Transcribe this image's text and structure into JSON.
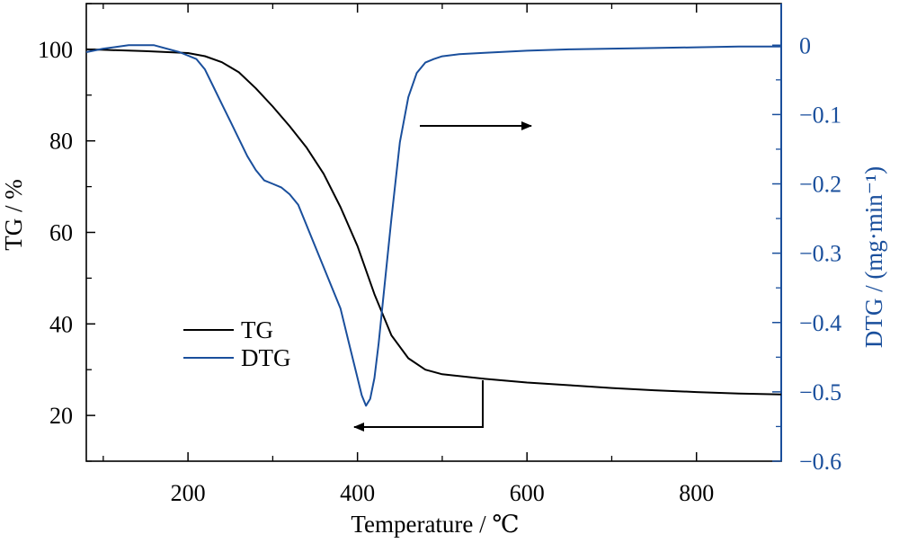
{
  "chart_data": {
    "type": "line",
    "title": "",
    "xlabel": "Temperature / ℃",
    "ylabel_left": "TG / %",
    "ylabel_right": "DTG / (mg·min⁻¹)",
    "xlim": [
      80,
      900
    ],
    "ylim_left": [
      10,
      110
    ],
    "ylim_right": [
      -0.6,
      0.06
    ],
    "x_ticks": [
      200,
      400,
      600,
      800
    ],
    "x_tick_labels": [
      "200",
      "400",
      "600",
      "800"
    ],
    "y_left_ticks": [
      20,
      40,
      60,
      80,
      100
    ],
    "y_left_tick_labels": [
      "20",
      "40",
      "60",
      "80",
      "100"
    ],
    "y_right_ticks": [
      0,
      -0.1,
      -0.2,
      -0.3,
      -0.4,
      -0.5,
      -0.6
    ],
    "y_right_tick_labels": [
      "0",
      "−0.1",
      "−0.2",
      "−0.3",
      "−0.4",
      "−0.5",
      "−0.6"
    ],
    "legend_position": "bottom-left",
    "grid": false,
    "series": [
      {
        "name": "TG",
        "axis": "left",
        "color": "#000000",
        "x": [
          80,
          100,
          150,
          200,
          220,
          240,
          260,
          280,
          300,
          320,
          340,
          360,
          380,
          400,
          420,
          440,
          460,
          480,
          500,
          550,
          600,
          650,
          700,
          750,
          800,
          850,
          900
        ],
        "y": [
          100,
          99.9,
          99.6,
          99.2,
          98.5,
          97.2,
          95.0,
          91.5,
          87.5,
          83.2,
          78.5,
          72.8,
          65.5,
          57.0,
          46.5,
          37.5,
          32.5,
          30.0,
          29.0,
          28.0,
          27.2,
          26.6,
          26.0,
          25.5,
          25.1,
          24.8,
          24.6
        ]
      },
      {
        "name": "DTG",
        "axis": "right",
        "color": "#1a4f9c",
        "x": [
          80,
          100,
          130,
          160,
          190,
          210,
          220,
          230,
          240,
          250,
          260,
          270,
          280,
          290,
          300,
          310,
          320,
          330,
          340,
          350,
          360,
          370,
          380,
          390,
          400,
          405,
          410,
          415,
          420,
          425,
          430,
          440,
          450,
          460,
          470,
          480,
          490,
          500,
          520,
          550,
          600,
          650,
          700,
          750,
          800,
          850,
          900
        ],
        "y": [
          -0.01,
          -0.005,
          0.0,
          0.0,
          -0.01,
          -0.02,
          -0.035,
          -0.06,
          -0.085,
          -0.11,
          -0.135,
          -0.16,
          -0.18,
          -0.195,
          -0.2,
          -0.205,
          -0.215,
          -0.23,
          -0.26,
          -0.29,
          -0.32,
          -0.35,
          -0.38,
          -0.43,
          -0.48,
          -0.505,
          -0.52,
          -0.51,
          -0.48,
          -0.43,
          -0.37,
          -0.25,
          -0.14,
          -0.075,
          -0.04,
          -0.025,
          -0.02,
          -0.016,
          -0.013,
          -0.011,
          -0.008,
          -0.006,
          -0.005,
          -0.004,
          -0.003,
          -0.002,
          -0.002
        ]
      }
    ],
    "legend": [
      {
        "name": "TG",
        "color": "#000000"
      },
      {
        "name": "DTG",
        "color": "#1a4f9c"
      }
    ],
    "annotations": [
      {
        "type": "arrow",
        "points": [
          [
            468,
            -0.12
          ],
          [
            593,
            -0.12
          ]
        ],
        "meaning": "DTG curve refers to right axis"
      },
      {
        "type": "arrow",
        "points_left_axis": [
          [
            547,
            28
          ],
          [
            547,
            19
          ],
          [
            400,
            19
          ]
        ],
        "meaning": "TG curve refers to left axis"
      }
    ],
    "colors": {
      "axis_left": "#000000",
      "axis_right": "#1a4f9c",
      "tg": "#000000",
      "dtg": "#1a4f9c"
    }
  }
}
